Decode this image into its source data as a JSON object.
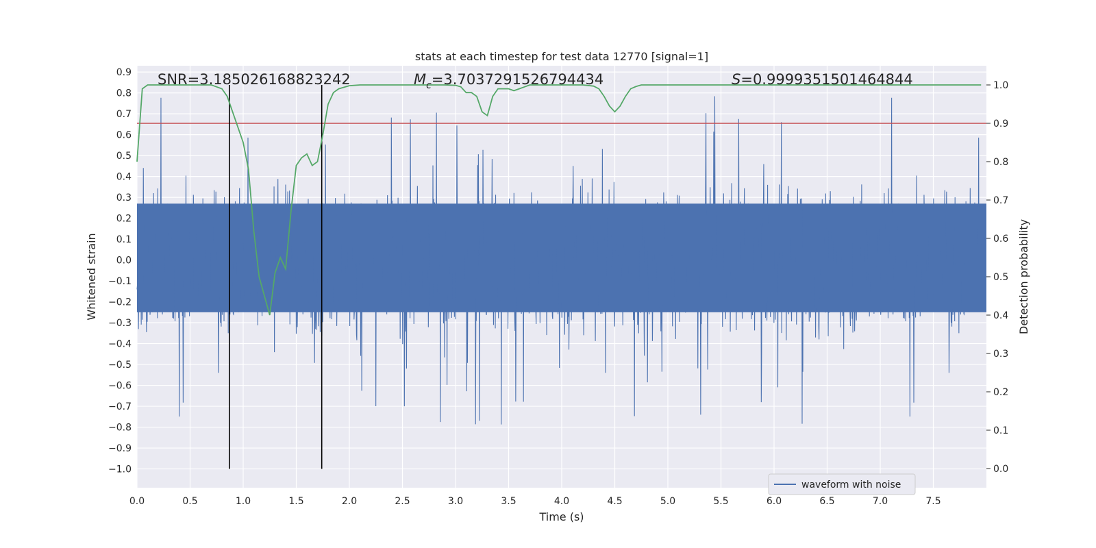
{
  "chart_data": {
    "type": "line",
    "title": "stats at each timestep for test data 12770 [signal=1]",
    "xlabel": "Time (s)",
    "ylabel": "Whitened strain",
    "y2label": "Detection probability",
    "xlim": [
      0.0,
      8.0
    ],
    "ylim": [
      -1.09,
      0.93
    ],
    "y2lim": [
      -0.05,
      1.05
    ],
    "xticks": [
      "0.0",
      "0.5",
      "1.0",
      "1.5",
      "2.0",
      "2.5",
      "3.0",
      "3.5",
      "4.0",
      "4.5",
      "5.0",
      "5.5",
      "6.0",
      "6.5",
      "7.0",
      "7.5"
    ],
    "yticks": [
      "0.9",
      "0.8",
      "0.7",
      "0.6",
      "0.5",
      "0.4",
      "0.3",
      "0.2",
      "0.1",
      "0.0",
      "−0.1",
      "−0.2",
      "−0.3",
      "−0.4",
      "−0.5",
      "−0.6",
      "−0.7",
      "−0.8",
      "−0.9",
      "−1.0"
    ],
    "y2ticks": [
      "1.0",
      "0.9",
      "0.8",
      "0.7",
      "0.6",
      "0.5",
      "0.4",
      "0.3",
      "0.2",
      "0.1",
      "0.0"
    ],
    "grid": true,
    "legend_position": "lower-right",
    "annotations": {
      "snr": "SNR=3.185026168823242",
      "mc_symbol": "M",
      "mc_sub": "c",
      "mc_value": "=3.7037291526794434",
      "s_symbol": "S",
      "s_value": "=0.9999351501464844"
    },
    "series": [
      {
        "name": "waveform with noise",
        "color": "#4c72b0",
        "kind": "noisy-strain",
        "envelope_upper_typical": 0.42,
        "envelope_lower_typical": -0.43,
        "y_max": 0.84,
        "y_min": -1.0
      },
      {
        "color": "#55a868",
        "axis": "right",
        "x": [
          0.0,
          0.05,
          0.1,
          0.15,
          0.2,
          0.3,
          0.4,
          0.5,
          0.6,
          0.7,
          0.75,
          0.8,
          0.85,
          0.9,
          0.95,
          1.0,
          1.05,
          1.1,
          1.15,
          1.2,
          1.25,
          1.3,
          1.35,
          1.4,
          1.45,
          1.5,
          1.55,
          1.6,
          1.65,
          1.7,
          1.75,
          1.8,
          1.85,
          1.9,
          2.0,
          2.1,
          2.2,
          2.5,
          2.8,
          2.9,
          3.0,
          3.05,
          3.1,
          3.15,
          3.2,
          3.25,
          3.3,
          3.35,
          3.4,
          3.45,
          3.5,
          3.55,
          3.6,
          3.65,
          3.7,
          3.75,
          3.8,
          3.9,
          4.0,
          4.1,
          4.2,
          4.3,
          4.35,
          4.4,
          4.45,
          4.5,
          4.55,
          4.6,
          4.65,
          4.7,
          4.75,
          4.8,
          4.9,
          5.0,
          5.5,
          6.0,
          6.5,
          7.0,
          7.5,
          8.0
        ],
        "y": [
          0.8,
          0.99,
          1.0,
          1.0,
          1.0,
          1.0,
          1.0,
          1.0,
          1.0,
          1.0,
          0.995,
          0.99,
          0.97,
          0.93,
          0.89,
          0.85,
          0.78,
          0.62,
          0.5,
          0.45,
          0.4,
          0.51,
          0.55,
          0.52,
          0.67,
          0.79,
          0.81,
          0.82,
          0.79,
          0.8,
          0.87,
          0.95,
          0.98,
          0.99,
          0.998,
          1.0,
          1.0,
          1.0,
          1.0,
          1.0,
          0.999,
          0.995,
          0.98,
          0.98,
          0.97,
          0.93,
          0.92,
          0.97,
          0.99,
          0.99,
          0.99,
          0.985,
          0.99,
          0.995,
          1.0,
          1.0,
          1.0,
          1.0,
          1.0,
          1.0,
          1.0,
          0.997,
          0.99,
          0.97,
          0.945,
          0.93,
          0.945,
          0.97,
          0.99,
          0.996,
          1.0,
          1.0,
          1.0,
          1.0,
          1.0,
          1.0,
          1.0,
          1.0,
          1.0,
          1.0
        ]
      }
    ],
    "hlines": [
      {
        "axis": "right",
        "y": 0.9,
        "color": "#c44e52"
      }
    ],
    "vlines": [
      {
        "x": 0.87,
        "y_top_right": 1.0,
        "color": "#000000"
      },
      {
        "x": 1.74,
        "y_top_right": 1.0,
        "color": "#000000"
      }
    ]
  }
}
